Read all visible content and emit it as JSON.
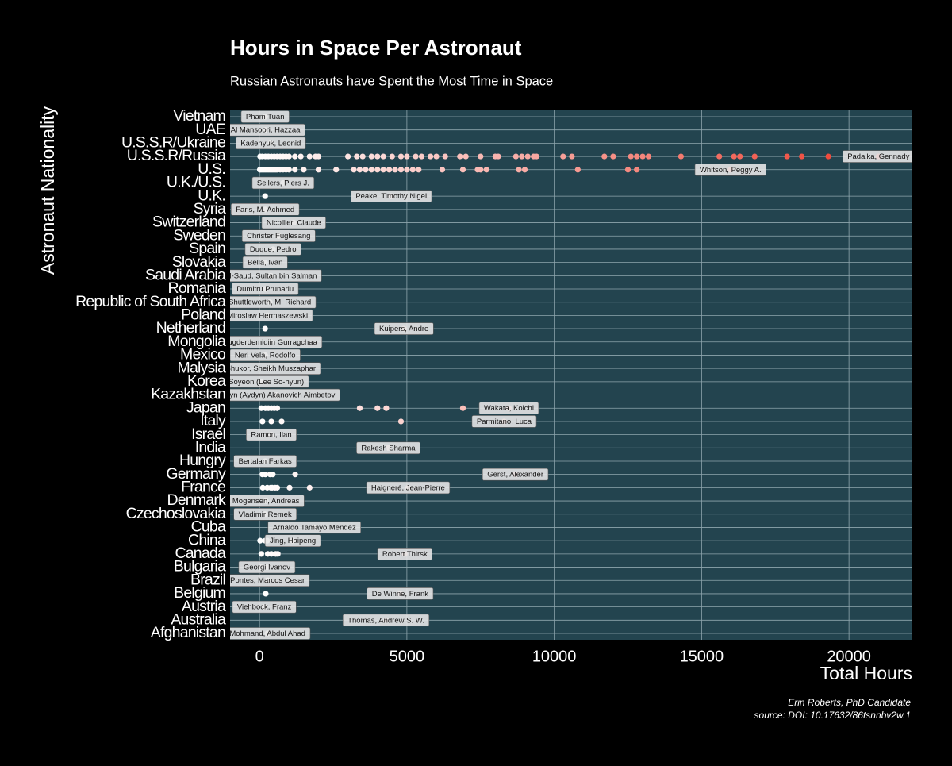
{
  "chart_data": {
    "type": "strip",
    "title": "Hours in Space Per Astronaut",
    "subtitle": "Russian Astronauts have Spent the Most Time in Space",
    "x_label": "Total Hours",
    "y_label": "Astronaut Nationality",
    "caption": [
      "Erin Roberts, PhD Candidate",
      "source: DOI: 10.17632/86tsnnbv2w.1"
    ],
    "xlim": [
      -1000,
      22150
    ],
    "xticks": [
      0,
      5000,
      10000,
      15000,
      20000
    ],
    "grid": true,
    "color_scale": [
      "#ffffff",
      "#ef3b2c"
    ],
    "categories": [
      "Afghanistan",
      "Australia",
      "Austria",
      "Belgium",
      "Brazil",
      "Bulgaria",
      "Canada",
      "China",
      "Cuba",
      "Czechoslovakia",
      "Denmark",
      "France",
      "Germany",
      "Hungry",
      "India",
      "Israel",
      "Italy",
      "Japan",
      "Kazakhstan",
      "Korea",
      "Malysia",
      "Mexico",
      "Mongolia",
      "Netherland",
      "Poland",
      "Republic of South Africa",
      "Romania",
      "Saudi Arabia",
      "Slovakia",
      "Spain",
      "Sweden",
      "Switzerland",
      "Syria",
      "U.K.",
      "U.K./U.S.",
      "U.S.",
      "U.S.S.R/Russia",
      "U.S.S.R/Ukraine",
      "UAE",
      "Vietnam"
    ],
    "astronauts": [
      "Mohmand, Abdul Ahad",
      "Thomas, Andrew S. W.",
      "Viehbock, Franz",
      "De Winne, Frank",
      "Pontes, Marcos Cesar",
      "Georgi Ivanov",
      "Robert Thirsk",
      "Jing, Haipeng",
      "Arnaldo Tamayo Mendez",
      "Vladimir Remek",
      "Mogensen, Andreas",
      "Haigneré, Jean-Pierre",
      "Gerst, Alexander",
      "Bertalan Farkas",
      "Rakesh Sharma",
      "Ramon, Ilan",
      "Parmitano, Luca",
      "Wakata, Koichi",
      "Aidyn (Aydyn) Akanovich Aimbetov",
      "Yi, Soyeon (Lee So-hyun)",
      "Shukor, Sheikh Muszaphar",
      "Neri Vela, Rodolfo",
      "Jugderdemidiin Gurragchaa",
      "Kuipers, Andre",
      "Miroslaw Hermaszewski",
      "Shuttleworth, M. Richard",
      "Dumitru Prunariu",
      "Al-Saud, Sultan bin Salman",
      "Bella, Ivan",
      "Duque, Pedro",
      "Christer Fuglesang",
      "Nicollier, Claude",
      "Faris, M. Achmed",
      "Peake, Timothy Nigel",
      "Sellers, Piers J.",
      "Whitson, Peggy A.",
      "Padalka, Gennady",
      "Kadenyuk, Leonid",
      "Al Mansoori, Hazzaa",
      "Pham Tuan"
    ],
    "hours": [
      [
        270
      ],
      [
        4290
      ],
      [
        160
      ],
      [
        210,
        4770
      ],
      [
        270
      ],
      [
        55,
        250
      ],
      [
        60,
        280,
        400,
        550,
        620,
        4930
      ],
      [
        20,
        190,
        260,
        1130
      ],
      [
        1860
      ],
      [
        190
      ],
      [
        215
      ],
      [
        110,
        260,
        380,
        430,
        530,
        600,
        1020,
        1700,
        5040
      ],
      [
        100,
        200,
        360,
        450,
        1210,
        8680
      ],
      [
        190
      ],
      [
        4370
      ],
      [
        400
      ],
      [
        100,
        400,
        750,
        4800,
        8300
      ],
      [
        60,
        200,
        300,
        400,
        500,
        600,
        3400,
        4000,
        4300,
        6900,
        8460
      ],
      [
        590
      ],
      [
        50
      ],
      [
        380
      ],
      [
        190
      ],
      [
        380
      ],
      [
        190,
        4900
      ],
      [
        270
      ],
      [
        350
      ],
      [
        190
      ],
      [
        380
      ],
      [
        190
      ],
      [
        460
      ],
      [
        650
      ],
      [
        1160
      ],
      [
        190
      ],
      [
        190,
        4470
      ],
      [
        800
      ],
      [
        10,
        50,
        100,
        150,
        200,
        250,
        300,
        350,
        400,
        450,
        500,
        550,
        600,
        700,
        800,
        900,
        1000,
        1200,
        1500,
        2000,
        2600,
        3200,
        3400,
        3600,
        3800,
        4000,
        4200,
        4400,
        4600,
        4800,
        5000,
        5200,
        5400,
        6200,
        6900,
        7400,
        7500,
        7700,
        8800,
        9000,
        10800,
        12500,
        12800,
        15980
      ],
      [
        20,
        100,
        200,
        300,
        400,
        500,
        600,
        700,
        800,
        900,
        1000,
        1200,
        1400,
        1700,
        1900,
        2000,
        3000,
        3300,
        3500,
        3800,
        4000,
        4200,
        4500,
        4800,
        5000,
        5300,
        5500,
        5800,
        6000,
        6300,
        6800,
        7000,
        7500,
        8000,
        8100,
        8700,
        8900,
        9100,
        9300,
        9400,
        10300,
        10600,
        11700,
        12000,
        12600,
        12800,
        13000,
        13200,
        14300,
        15600,
        16100,
        16300,
        16800,
        17900,
        18400,
        19300,
        21000
      ],
      [
        380
      ],
      [
        200
      ],
      [
        190
      ]
    ]
  }
}
